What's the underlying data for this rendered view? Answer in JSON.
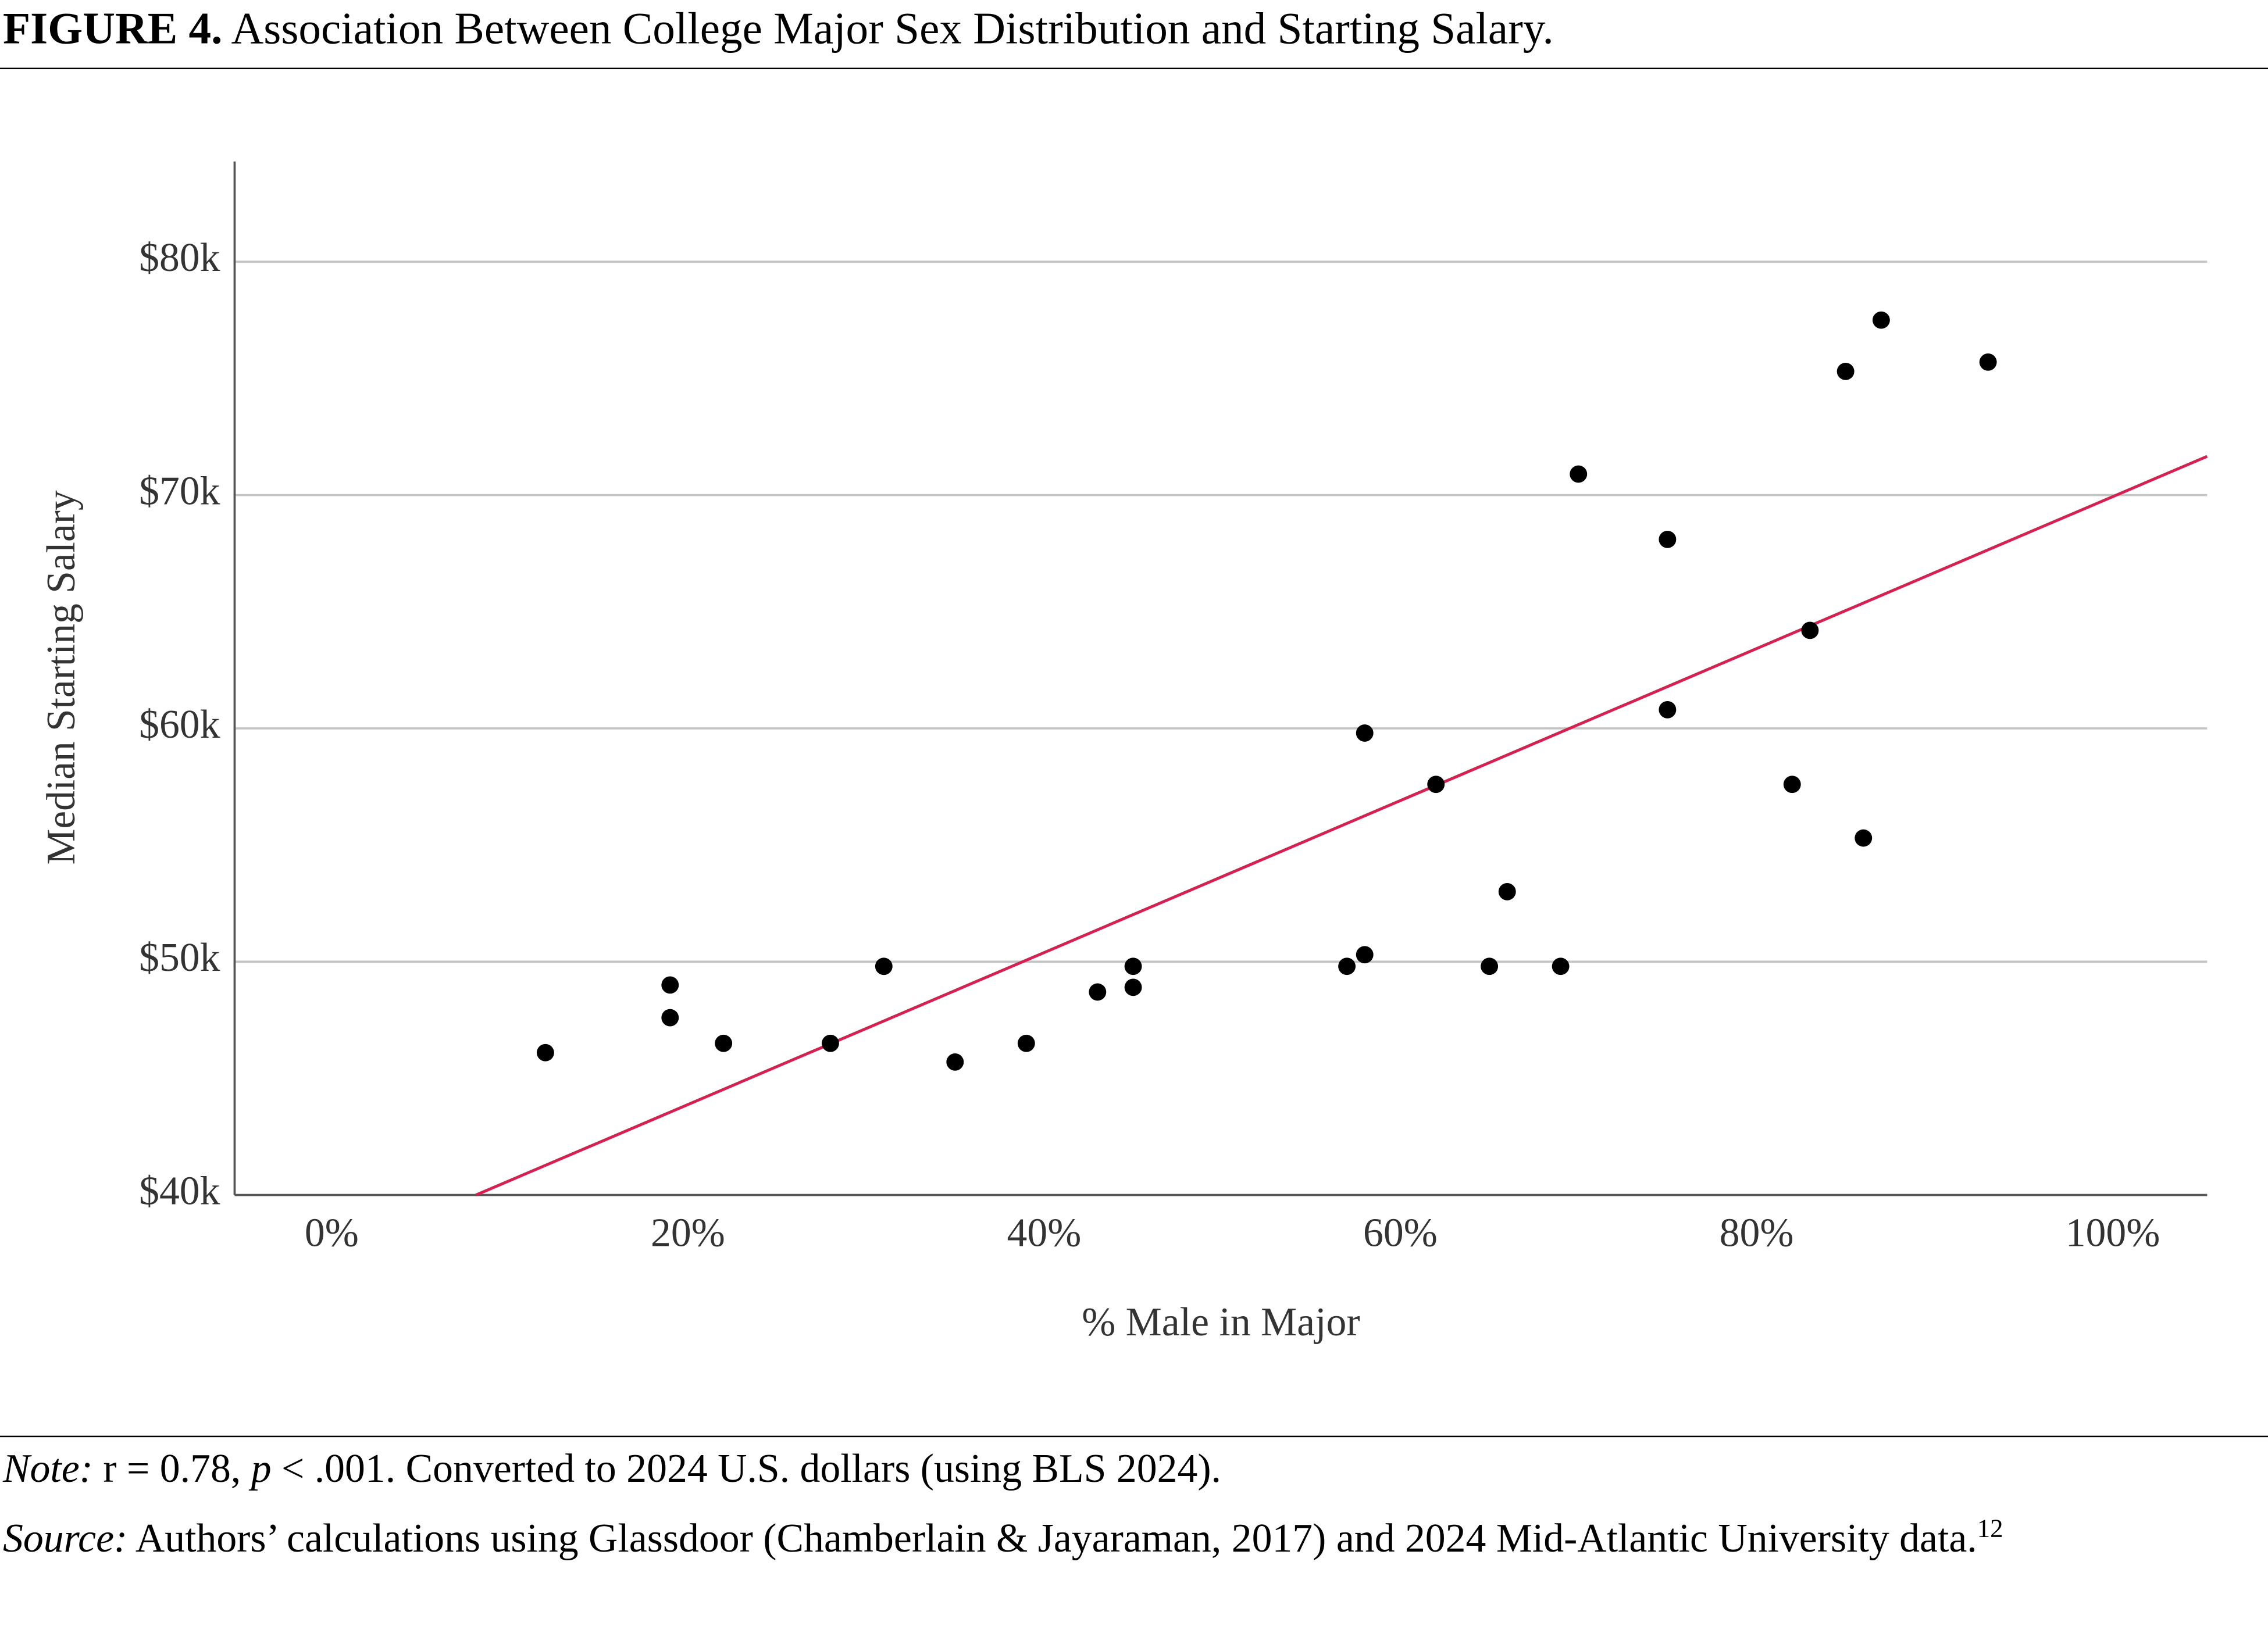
{
  "chart_data": {
    "type": "scatter",
    "title_label": "FIGURE 4.",
    "title": "Association Between College Major Sex Distribution and Starting Salary.",
    "x_label": "% Male in Major",
    "y_label": "Median Starting Salary",
    "x": [
      12,
      19,
      19,
      22,
      28,
      31,
      35,
      39,
      43,
      45,
      45,
      57,
      58,
      58,
      62,
      65,
      66,
      69,
      70,
      75,
      75,
      82,
      83,
      85,
      86,
      87,
      93
    ],
    "values": [
      46100,
      49000,
      47600,
      46500,
      46500,
      49800,
      45700,
      46500,
      48700,
      49800,
      48900,
      49800,
      50300,
      59800,
      57600,
      49800,
      53000,
      49800,
      70900,
      68100,
      60800,
      57600,
      64200,
      75300,
      55300,
      77500,
      75700
    ],
    "color": "#000000",
    "trend_line": {
      "x": [
        8.1,
        105.3
      ],
      "values": [
        40000,
        71660
      ],
      "color": "#d6204f"
    },
    "xlim": [
      -5.45,
      105.3
    ],
    "ylim": [
      40000,
      84300
    ],
    "xticks": [
      {
        "value": 0,
        "label": "0%"
      },
      {
        "value": 20,
        "label": "20%"
      },
      {
        "value": 40,
        "label": "40%"
      },
      {
        "value": 60,
        "label": "60%"
      },
      {
        "value": 80,
        "label": "80%"
      },
      {
        "value": 100,
        "label": "100%"
      }
    ],
    "yticks": [
      {
        "value": 40000,
        "label": "$40k"
      },
      {
        "value": 50000,
        "label": "$50k"
      },
      {
        "value": 60000,
        "label": "$60k"
      },
      {
        "value": 70000,
        "label": "$70k"
      },
      {
        "value": 80000,
        "label": "$80k"
      }
    ],
    "grid": true,
    "note": {
      "label": "Note:",
      "text1": "r = 0.78, ",
      "italic": "p",
      "text2": " < .001. Converted to 2024 U.S. dollars (using BLS 2024)."
    },
    "source": {
      "label": "Source:",
      "text": " Authors’ calculations using Glassdoor (Chamberlain & Jayaraman, 2017) and 2024 Mid-Atlantic University data.",
      "footnote": "12"
    }
  }
}
